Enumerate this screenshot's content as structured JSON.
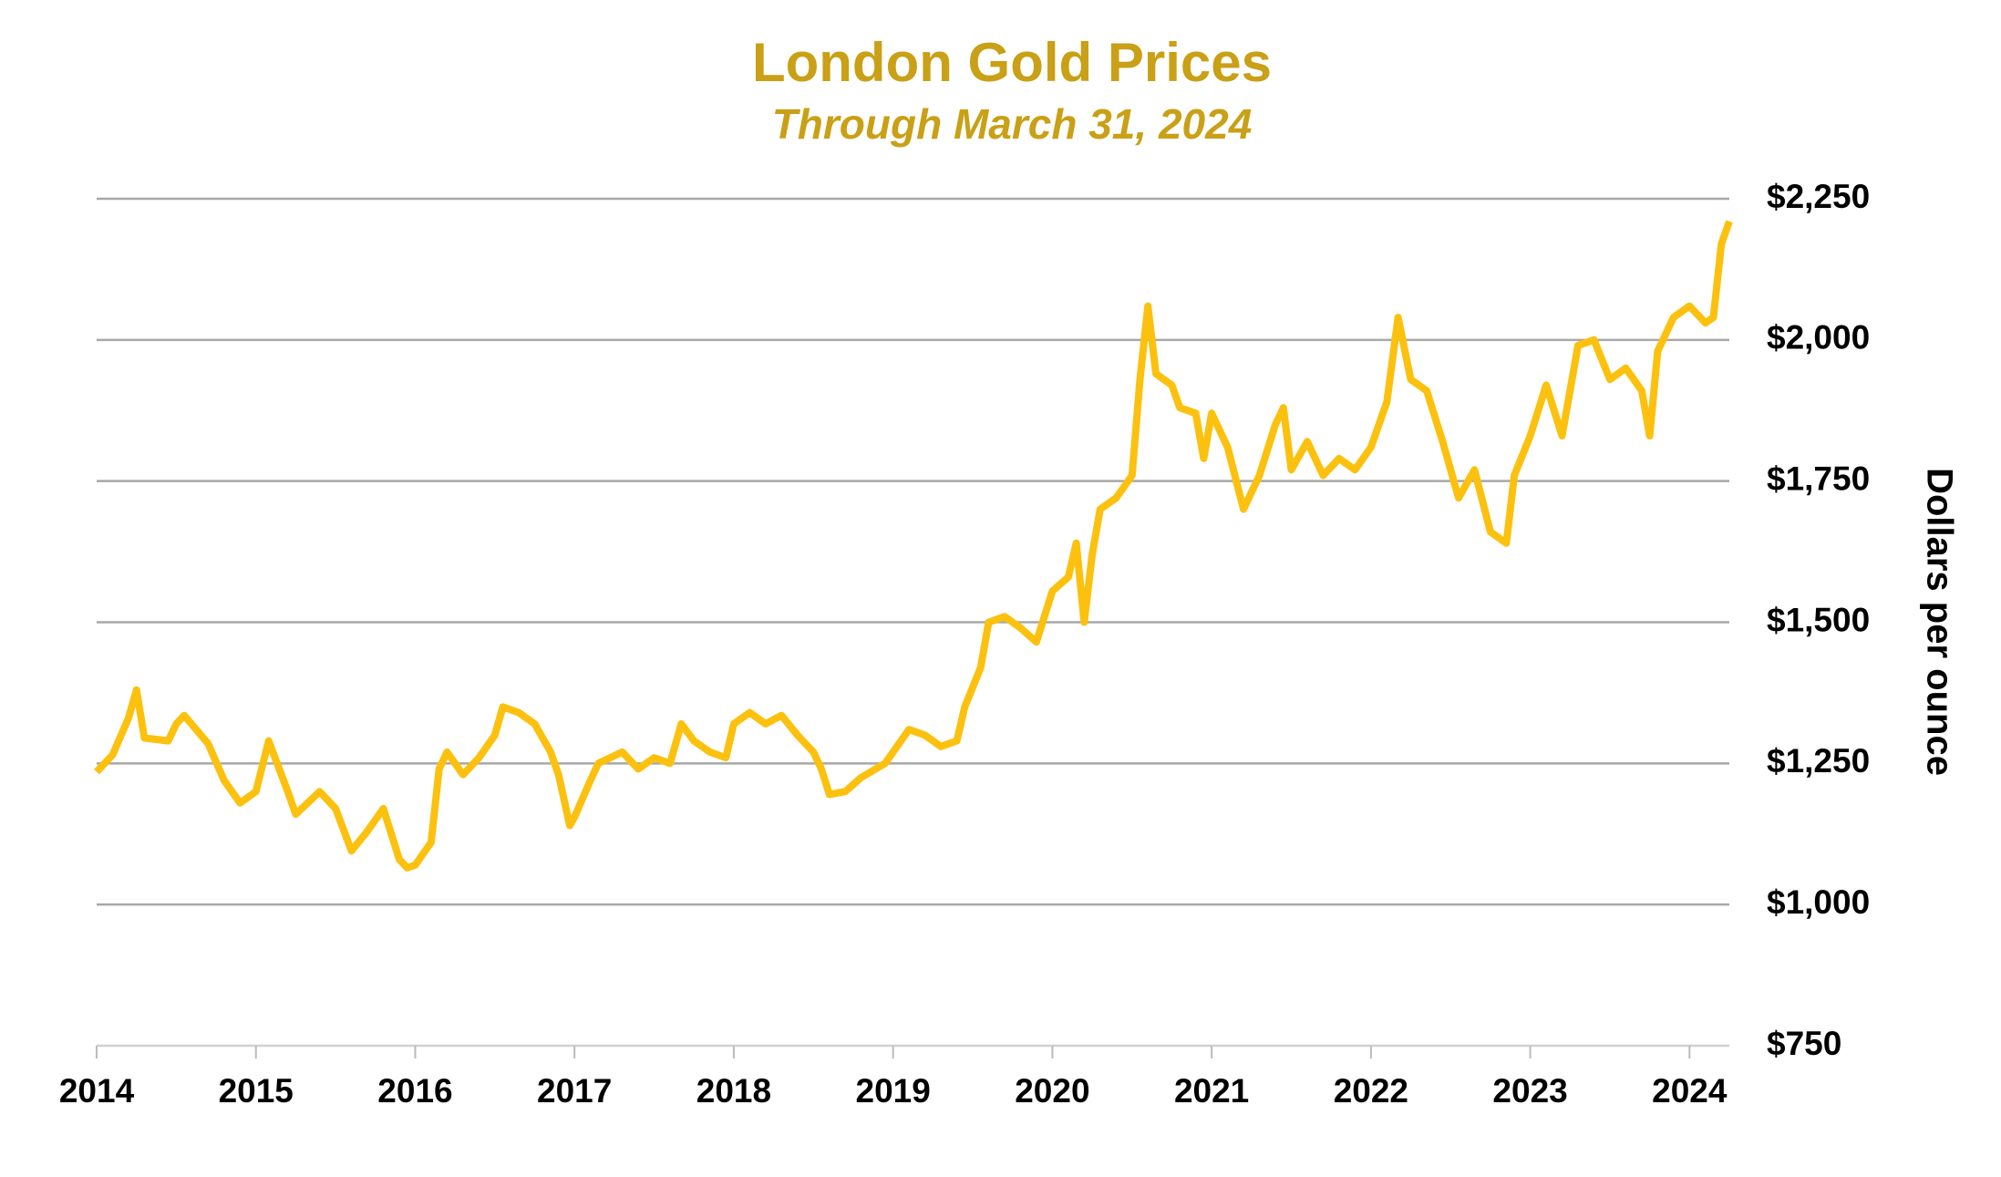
{
  "chart_data": {
    "type": "line",
    "title": "London Gold Prices",
    "subtitle": "Through March 31, 2024",
    "y_label": "Dollars per ounce",
    "x": [
      2014.0,
      2014.1,
      2014.2,
      2014.25,
      2014.3,
      2014.45,
      2014.5,
      2014.55,
      2014.7,
      2014.8,
      2014.9,
      2015.0,
      2015.08,
      2015.2,
      2015.25,
      2015.4,
      2015.5,
      2015.6,
      2015.7,
      2015.8,
      2015.9,
      2015.95,
      2016.0,
      2016.1,
      2016.15,
      2016.2,
      2016.3,
      2016.4,
      2016.5,
      2016.55,
      2016.65,
      2016.75,
      2016.85,
      2016.9,
      2016.97,
      2017.0,
      2017.1,
      2017.15,
      2017.3,
      2017.4,
      2017.5,
      2017.6,
      2017.67,
      2017.75,
      2017.85,
      2017.95,
      2018.0,
      2018.1,
      2018.2,
      2018.3,
      2018.4,
      2018.5,
      2018.55,
      2018.6,
      2018.7,
      2018.8,
      2018.95,
      2019.1,
      2019.2,
      2019.3,
      2019.4,
      2019.45,
      2019.55,
      2019.6,
      2019.7,
      2019.8,
      2019.9,
      2020.0,
      2020.1,
      2020.15,
      2020.2,
      2020.25,
      2020.3,
      2020.4,
      2020.5,
      2020.55,
      2020.6,
      2020.65,
      2020.75,
      2020.8,
      2020.9,
      2020.95,
      2021.0,
      2021.1,
      2021.2,
      2021.3,
      2021.4,
      2021.45,
      2021.5,
      2021.6,
      2021.7,
      2021.8,
      2021.9,
      2022.0,
      2022.1,
      2022.17,
      2022.25,
      2022.35,
      2022.45,
      2022.55,
      2022.65,
      2022.75,
      2022.85,
      2022.9,
      2023.0,
      2023.1,
      2023.2,
      2023.3,
      2023.4,
      2023.5,
      2023.6,
      2023.7,
      2023.75,
      2023.8,
      2023.9,
      2024.0,
      2024.1,
      2024.15,
      2024.2,
      2024.25
    ],
    "series": [
      {
        "name": "London gold price",
        "color": "#fcc10e",
        "values": [
          1235,
          1265,
          1330,
          1380,
          1295,
          1290,
          1320,
          1335,
          1285,
          1220,
          1180,
          1200,
          1290,
          1200,
          1160,
          1200,
          1170,
          1095,
          1130,
          1170,
          1080,
          1065,
          1070,
          1110,
          1240,
          1270,
          1230,
          1260,
          1300,
          1350,
          1340,
          1320,
          1270,
          1230,
          1140,
          1155,
          1220,
          1250,
          1270,
          1240,
          1260,
          1250,
          1320,
          1290,
          1270,
          1260,
          1320,
          1340,
          1320,
          1335,
          1300,
          1270,
          1240,
          1195,
          1200,
          1225,
          1250,
          1310,
          1300,
          1280,
          1290,
          1350,
          1420,
          1500,
          1510,
          1490,
          1465,
          1555,
          1580,
          1640,
          1500,
          1620,
          1700,
          1720,
          1760,
          1930,
          2060,
          1940,
          1920,
          1880,
          1870,
          1790,
          1870,
          1810,
          1700,
          1760,
          1850,
          1880,
          1770,
          1820,
          1760,
          1790,
          1770,
          1810,
          1890,
          2040,
          1930,
          1910,
          1820,
          1720,
          1770,
          1660,
          1640,
          1760,
          1830,
          1920,
          1830,
          1990,
          2000,
          1930,
          1950,
          1910,
          1830,
          1980,
          2040,
          2060,
          2030,
          2040,
          2170,
          2210
        ]
      }
    ],
    "xlim": [
      2014,
      2024.25
    ],
    "xticks": [
      2014,
      2015,
      2016,
      2017,
      2018,
      2019,
      2020,
      2021,
      2022,
      2023,
      2024
    ],
    "ylim": [
      750,
      2250
    ],
    "yticks": [
      {
        "value": 750,
        "label": "$750"
      },
      {
        "value": 1000,
        "label": "$1,000"
      },
      {
        "value": 1250,
        "label": "$1,250"
      },
      {
        "value": 1500,
        "label": "$1,500"
      },
      {
        "value": 1750,
        "label": "$1,750"
      },
      {
        "value": 2000,
        "label": "$2,000"
      },
      {
        "value": 2250,
        "label": "$2,250"
      }
    ],
    "grid": true,
    "title_color": "#c9a016"
  }
}
